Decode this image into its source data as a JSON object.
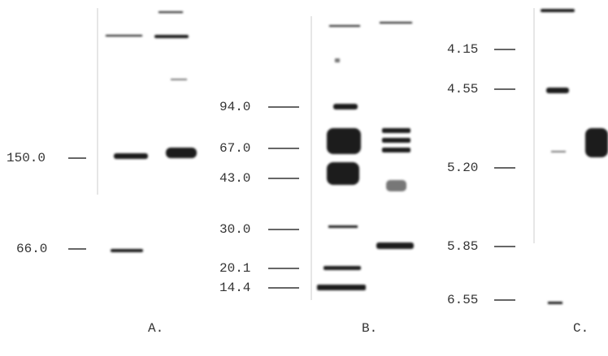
{
  "panels": [
    {
      "label": "A.",
      "markers": [
        "150.0",
        "66.0"
      ]
    },
    {
      "label": "B.",
      "markers": [
        "94.0",
        "67.0",
        "43.0",
        "30.0",
        "20.1",
        "14.4"
      ]
    },
    {
      "label": "C.",
      "markers": [
        "4.15",
        "4.55",
        "5.20",
        "5.85",
        "6.55"
      ]
    }
  ]
}
